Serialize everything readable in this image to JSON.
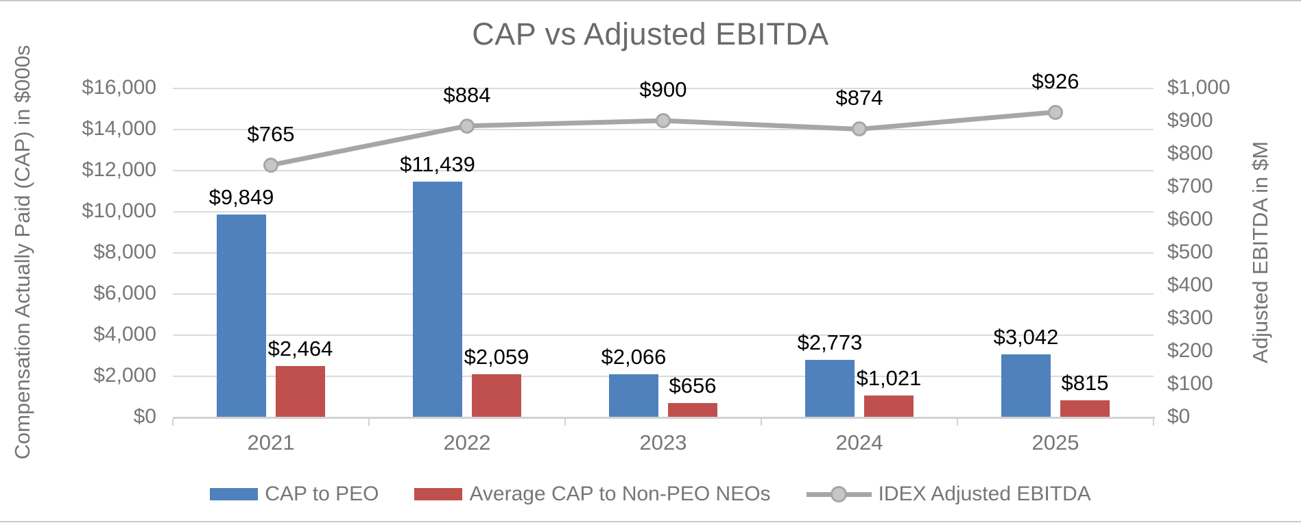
{
  "title": "CAP vs Adjusted EBITDA",
  "left_axis": {
    "title": "Compensation Actually Paid (CAP) in $000s",
    "tick_labels": [
      "$16,000",
      "$14,000",
      "$12,000",
      "$10,000",
      "$8,000",
      "$6,000",
      "$4,000",
      "$2,000",
      "$0"
    ],
    "min": 0,
    "max": 16000,
    "step": 2000
  },
  "right_axis": {
    "title": "Adjusted EBITDA in $M",
    "tick_labels": [
      "$1,000",
      "$900",
      "$800",
      "$700",
      "$600",
      "$500",
      "$400",
      "$300",
      "$200",
      "$100",
      "$0"
    ],
    "min": 0,
    "max": 1000,
    "step": 100
  },
  "chart_data": {
    "type": "bar",
    "subtype": "bar-and-line-combo",
    "title": "CAP vs Adjusted EBITDA",
    "categories": [
      "2021",
      "2022",
      "2023",
      "2024",
      "2025"
    ],
    "series": [
      {
        "name": "CAP to PEO",
        "type": "bar",
        "axis": "left",
        "color": "#4F81BD",
        "values": [
          9849,
          11439,
          2066,
          2773,
          3042
        ],
        "labels": [
          "$9,849",
          "$11,439",
          "$2,066",
          "$2,773",
          "$3,042"
        ]
      },
      {
        "name": "Average CAP to Non-PEO NEOs",
        "type": "bar",
        "axis": "left",
        "color": "#C0504D",
        "values": [
          2464,
          2059,
          656,
          1021,
          815
        ],
        "labels": [
          "$2,464",
          "$2,059",
          "$656",
          "$1,021",
          "$815"
        ]
      },
      {
        "name": "IDEX Adjusted EBITDA",
        "type": "line",
        "axis": "right",
        "color": "#A6A6A6",
        "marker_fill": "#C6C6C6",
        "values": [
          765,
          884,
          900,
          874,
          926
        ],
        "labels": [
          "$765",
          "$884",
          "$900",
          "$874",
          "$926"
        ]
      }
    ],
    "left_ylim": [
      0,
      16000
    ],
    "right_ylim": [
      0,
      1000
    ],
    "grid": true,
    "legend_position": "bottom",
    "xlabel": "",
    "ylabel_left": "Compensation Actually Paid (CAP) in $000s",
    "ylabel_right": "Adjusted EBITDA in $M"
  },
  "colors": {
    "bar_blue": "#4F81BD",
    "bar_red": "#C0504D",
    "line_gray": "#A6A6A6",
    "marker_fill": "#C6C6C6",
    "gridline": "#DBDBDB",
    "text_gray": "#767676",
    "title_gray": "#6A6A6A",
    "data_label": "#000000"
  }
}
